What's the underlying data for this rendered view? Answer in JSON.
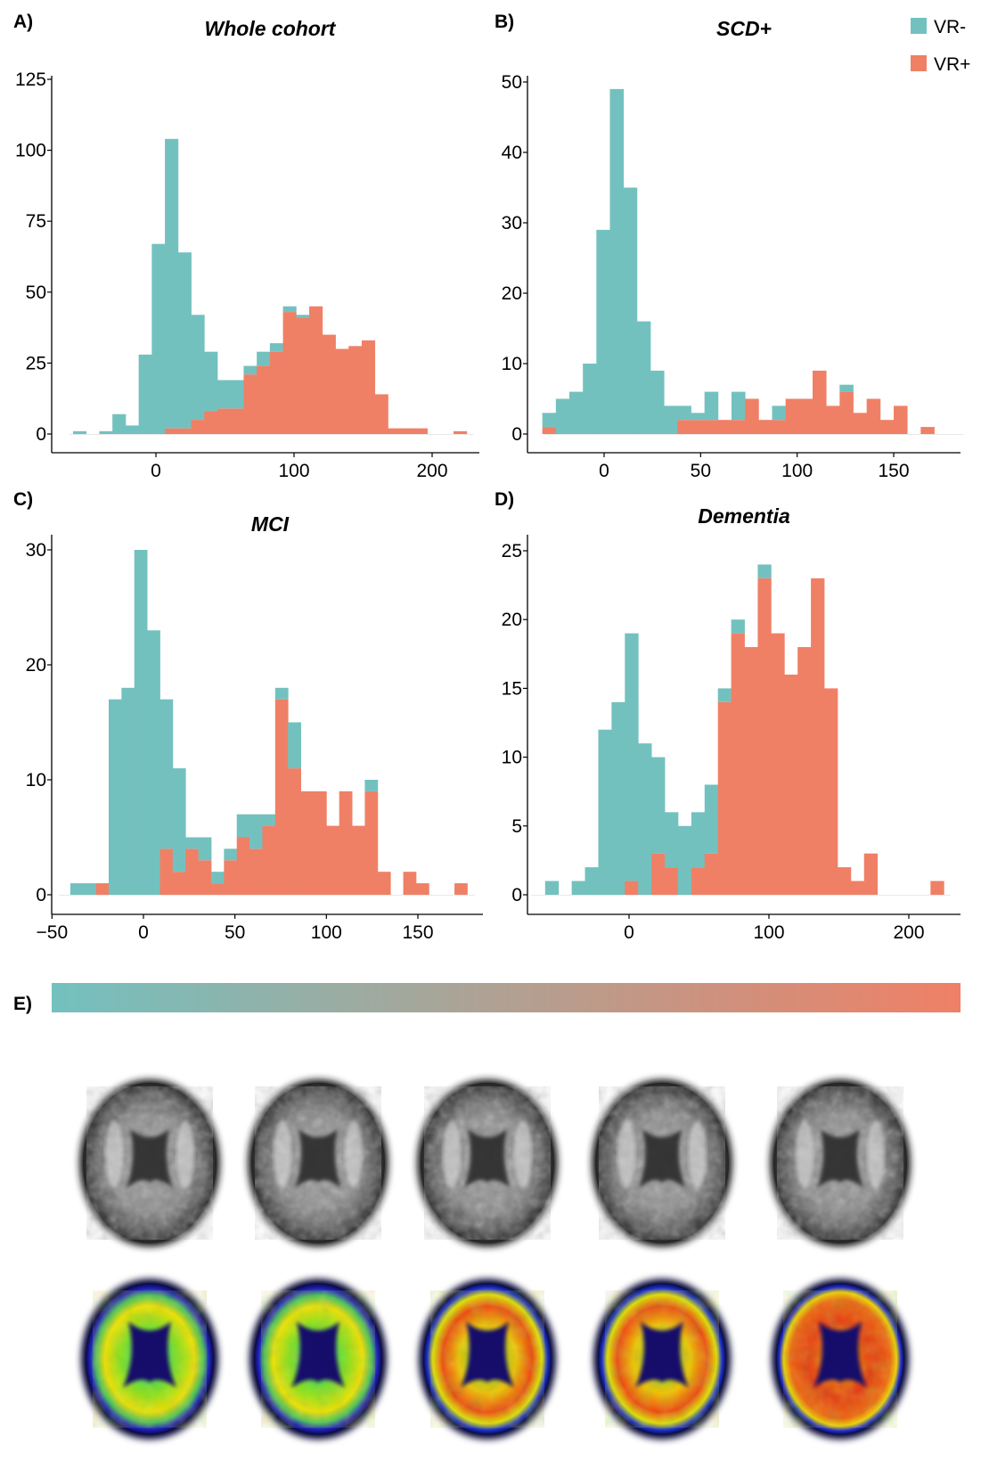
{
  "legend": [
    {
      "label": "VR-",
      "color": "#73c1bf"
    },
    {
      "label": "VR+",
      "color": "#ef8066"
    }
  ],
  "colorbar": {
    "letter": "E)",
    "from_color": "#73c1bf",
    "to_color": "#ef8066"
  },
  "chart_data": [
    {
      "letter": "A)",
      "type": "bar",
      "subtype": "stacked histogram",
      "title": "Whole cohort",
      "xlabel": "",
      "ylabel": "",
      "xlim": [
        -68,
        235
      ],
      "ylim": [
        0,
        125
      ],
      "xticks": [
        0,
        100,
        200
      ],
      "yticks": [
        0,
        25,
        50,
        75,
        100,
        125
      ],
      "grid": false,
      "bin_start": -60,
      "bin_width": 9.5,
      "series": [
        {
          "name": "VR-",
          "values": [
            1,
            0,
            1,
            7,
            3,
            28,
            67,
            102,
            62,
            37,
            21,
            10,
            10,
            3,
            5,
            3,
            2,
            1,
            0,
            0,
            0,
            0,
            0,
            0,
            0,
            0,
            0,
            0,
            0,
            0
          ]
        },
        {
          "name": "VR+",
          "values": [
            0,
            0,
            0,
            0,
            0,
            0,
            0,
            2,
            2,
            5,
            8,
            9,
            9,
            21,
            24,
            29,
            43,
            41,
            45,
            35,
            30,
            31,
            33,
            14,
            2,
            2,
            2,
            0,
            0,
            1
          ]
        }
      ]
    },
    {
      "letter": "B)",
      "type": "bar",
      "subtype": "stacked histogram",
      "title": "SCD+",
      "xlabel": "",
      "ylabel": "",
      "xlim": [
        -35,
        190
      ],
      "ylim": [
        0,
        50
      ],
      "xticks": [
        0,
        50,
        100,
        150
      ],
      "yticks": [
        0,
        10,
        20,
        30,
        40,
        50
      ],
      "grid": false,
      "bin_start": -32,
      "bin_width": 7,
      "series": [
        {
          "name": "VR-",
          "values": [
            2,
            5,
            6,
            10,
            29,
            49,
            35,
            16,
            9,
            4,
            2,
            1,
            4,
            0,
            4,
            0,
            0,
            2,
            0,
            0,
            0,
            0,
            1,
            0,
            0,
            0,
            0,
            0,
            0,
            0,
            0
          ]
        },
        {
          "name": "VR+",
          "values": [
            1,
            0,
            0,
            0,
            0,
            0,
            0,
            0,
            0,
            0,
            2,
            2,
            2,
            2,
            2,
            5,
            2,
            2,
            5,
            5,
            9,
            4,
            6,
            3,
            5,
            2,
            4,
            0,
            1,
            0,
            0
          ]
        }
      ]
    },
    {
      "letter": "C)",
      "type": "bar",
      "subtype": "stacked histogram",
      "title": "MCI",
      "xlabel": "",
      "ylabel": "",
      "xlim": [
        -50,
        185
      ],
      "ylim": [
        0,
        30
      ],
      "xticks": [
        -50,
        0,
        50,
        100,
        150
      ],
      "yticks": [
        0,
        10,
        20,
        30
      ],
      "grid": false,
      "bin_start": -40,
      "bin_width": 7,
      "series": [
        {
          "name": "VR-",
          "values": [
            1,
            1,
            0,
            17,
            18,
            30,
            23,
            13,
            9,
            1,
            2,
            1,
            1,
            2,
            3,
            1,
            1,
            4,
            0,
            0,
            0,
            0,
            0,
            1,
            0,
            0,
            0,
            0,
            0,
            0,
            0,
            0
          ]
        },
        {
          "name": "VR+",
          "values": [
            0,
            0,
            1,
            0,
            0,
            0,
            0,
            4,
            2,
            4,
            3,
            1,
            3,
            5,
            4,
            6,
            17,
            11,
            9,
            9,
            6,
            9,
            6,
            9,
            2,
            0,
            2,
            1,
            0,
            0,
            1,
            0
          ]
        }
      ]
    },
    {
      "letter": "D)",
      "type": "bar",
      "subtype": "stacked histogram",
      "title": "Dementia",
      "xlabel": "",
      "ylabel": "",
      "xlim": [
        -75,
        235
      ],
      "ylim": [
        0,
        25
      ],
      "xticks": [
        0,
        100,
        200
      ],
      "yticks": [
        0,
        5,
        10,
        15,
        20,
        25
      ],
      "grid": false,
      "bin_start": -60,
      "bin_width": 9.5,
      "series": [
        {
          "name": "VR-",
          "values": [
            1,
            0,
            1,
            2,
            12,
            14,
            18,
            11,
            7,
            4,
            5,
            4,
            5,
            1,
            1,
            0,
            1,
            0,
            0,
            0,
            0,
            0,
            0,
            0,
            0,
            0,
            0,
            0,
            0,
            0,
            0
          ]
        },
        {
          "name": "VR+",
          "values": [
            0,
            0,
            0,
            0,
            0,
            0,
            1,
            0,
            3,
            2,
            0,
            2,
            3,
            14,
            19,
            18,
            23,
            19,
            16,
            18,
            23,
            15,
            2,
            1,
            3,
            0,
            0,
            0,
            0,
            1,
            0
          ]
        }
      ]
    }
  ]
}
